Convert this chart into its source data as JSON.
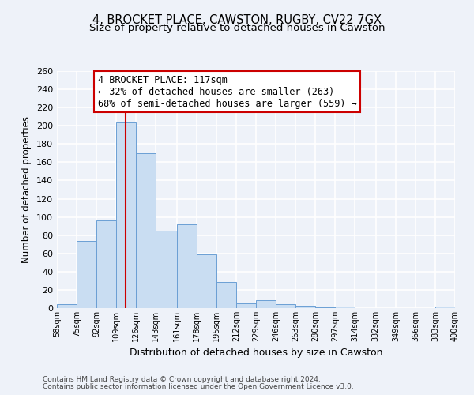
{
  "title": "4, BROCKET PLACE, CAWSTON, RUGBY, CV22 7GX",
  "subtitle": "Size of property relative to detached houses in Cawston",
  "xlabel": "Distribution of detached houses by size in Cawston",
  "ylabel": "Number of detached properties",
  "bin_edges": [
    58,
    75,
    92,
    109,
    126,
    143,
    161,
    178,
    195,
    212,
    229,
    246,
    263,
    280,
    297,
    314,
    332,
    349,
    366,
    383,
    400
  ],
  "bin_labels": [
    "58sqm",
    "75sqm",
    "92sqm",
    "109sqm",
    "126sqm",
    "143sqm",
    "161sqm",
    "178sqm",
    "195sqm",
    "212sqm",
    "229sqm",
    "246sqm",
    "263sqm",
    "280sqm",
    "297sqm",
    "314sqm",
    "332sqm",
    "349sqm",
    "366sqm",
    "383sqm",
    "400sqm"
  ],
  "counts": [
    4,
    74,
    96,
    204,
    170,
    85,
    92,
    59,
    29,
    5,
    9,
    4,
    3,
    1,
    2,
    0,
    0,
    0,
    0,
    2
  ],
  "bar_color": "#c9ddf2",
  "bar_edge_color": "#6b9fd4",
  "reference_line_x": 117,
  "reference_line_color": "#cc0000",
  "annotation_line1": "4 BROCKET PLACE: 117sqm",
  "annotation_line2": "← 32% of detached houses are smaller (263)",
  "annotation_line3": "68% of semi-detached houses are larger (559) →",
  "annotation_box_color": "#ffffff",
  "annotation_box_edge_color": "#cc0000",
  "ylim": [
    0,
    260
  ],
  "yticks": [
    0,
    20,
    40,
    60,
    80,
    100,
    120,
    140,
    160,
    180,
    200,
    220,
    240,
    260
  ],
  "footnote1": "Contains HM Land Registry data © Crown copyright and database right 2024.",
  "footnote2": "Contains public sector information licensed under the Open Government Licence v3.0.",
  "bg_color": "#eef2f9",
  "grid_color": "#ffffff",
  "title_fontsize": 10.5,
  "subtitle_fontsize": 9.5,
  "annotation_fontsize": 8.5
}
